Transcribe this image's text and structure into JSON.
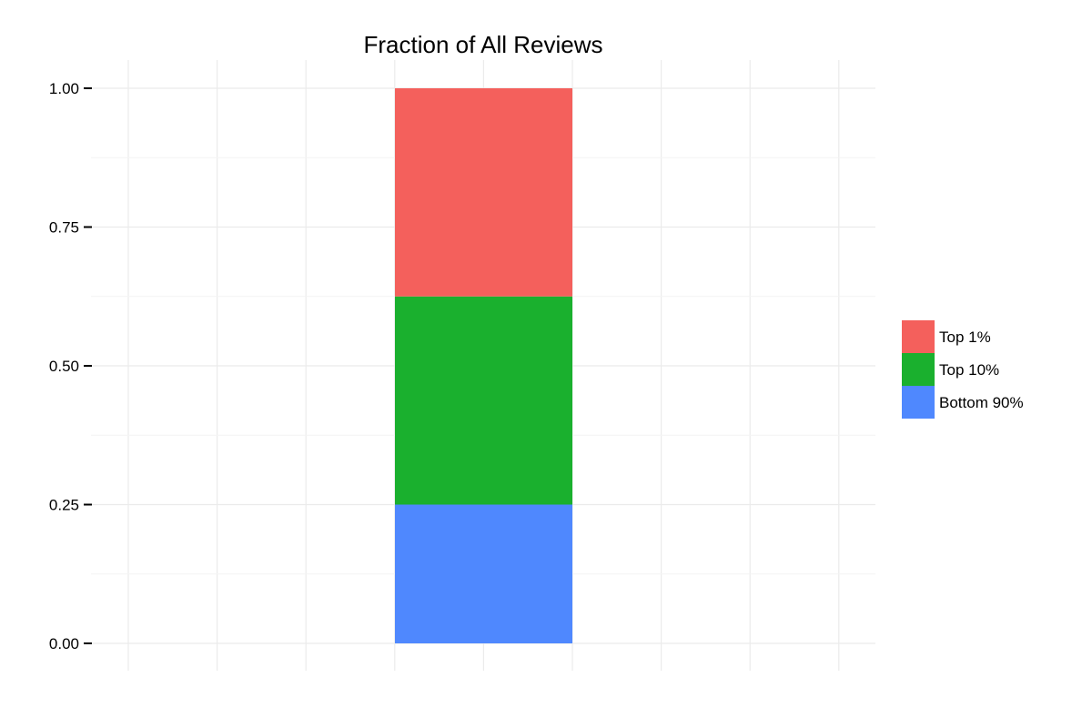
{
  "chart_data": {
    "type": "bar",
    "stacked": true,
    "title": "Fraction of All Reviews",
    "xlabel": "",
    "ylabel": "",
    "ylim": [
      0,
      1
    ],
    "yticks": [
      "0.00",
      "0.25",
      "0.50",
      "0.75",
      "1.00"
    ],
    "ytick_values": [
      0,
      0.25,
      0.5,
      0.75,
      1.0
    ],
    "grid": true,
    "legend_position": "right",
    "categories": [
      ""
    ],
    "series": [
      {
        "name": "Bottom 90%",
        "values": [
          0.25
        ],
        "color": "#4f88fe"
      },
      {
        "name": "Top 10%",
        "values": [
          0.375
        ],
        "color": "#1ab02e"
      },
      {
        "name": "Top 1%",
        "values": [
          0.375
        ],
        "color": "#f4605c"
      }
    ],
    "legend": [
      "Top 1%",
      "Top 10%",
      "Bottom 90%"
    ]
  }
}
